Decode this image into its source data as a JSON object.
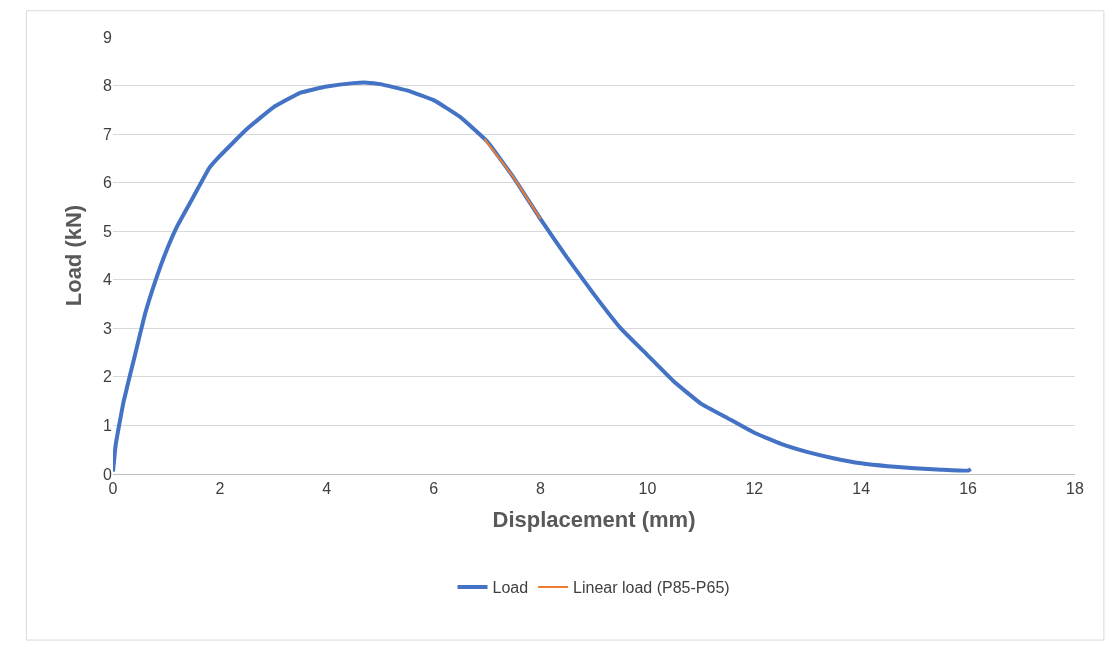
{
  "chart_data": {
    "type": "line",
    "xlabel": "Displacement (mm)",
    "ylabel": "Load (kN)",
    "xlim": [
      0,
      18
    ],
    "xticks": [
      0,
      2,
      4,
      6,
      8,
      10,
      12,
      14,
      16,
      18
    ],
    "ylim": [
      0,
      9
    ],
    "yticks": [
      0,
      1,
      2,
      3,
      4,
      5,
      6,
      7,
      8,
      9
    ],
    "grid": "y",
    "legend": "bottom",
    "marker": "none",
    "line_style": "solid",
    "series": [
      {
        "name": "Load",
        "color": "#4472c4",
        "x": [
          0,
          0.05,
          0.2,
          0.4,
          0.6,
          0.8,
          1.0,
          1.2,
          1.5,
          1.8,
          2.0,
          2.5,
          3.0,
          3.5,
          4.0,
          4.5,
          4.75,
          5.0,
          5.5,
          6.0,
          6.5,
          7.0,
          7.5,
          8.0,
          8.5,
          9.0,
          9.5,
          10.0,
          10.5,
          11.0,
          11.5,
          12.0,
          12.5,
          13.0,
          13.5,
          14.0,
          14.5,
          15.0,
          15.5,
          16.0,
          16.05
        ],
        "values": [
          0.05,
          0.6,
          1.5,
          2.4,
          3.3,
          4.0,
          4.6,
          5.1,
          5.7,
          6.3,
          6.55,
          7.1,
          7.55,
          7.85,
          7.98,
          8.05,
          8.06,
          8.03,
          7.9,
          7.7,
          7.35,
          6.85,
          6.1,
          5.25,
          4.45,
          3.7,
          3.0,
          2.45,
          1.9,
          1.45,
          1.15,
          0.85,
          0.62,
          0.45,
          0.32,
          0.22,
          0.16,
          0.12,
          0.09,
          0.07,
          0.1
        ]
      },
      {
        "name": "Linear load (P85-P65)",
        "color": "#ed7d31",
        "x": [
          6.95,
          7.5,
          8.0
        ],
        "values": [
          6.9,
          6.1,
          5.25
        ]
      }
    ]
  }
}
